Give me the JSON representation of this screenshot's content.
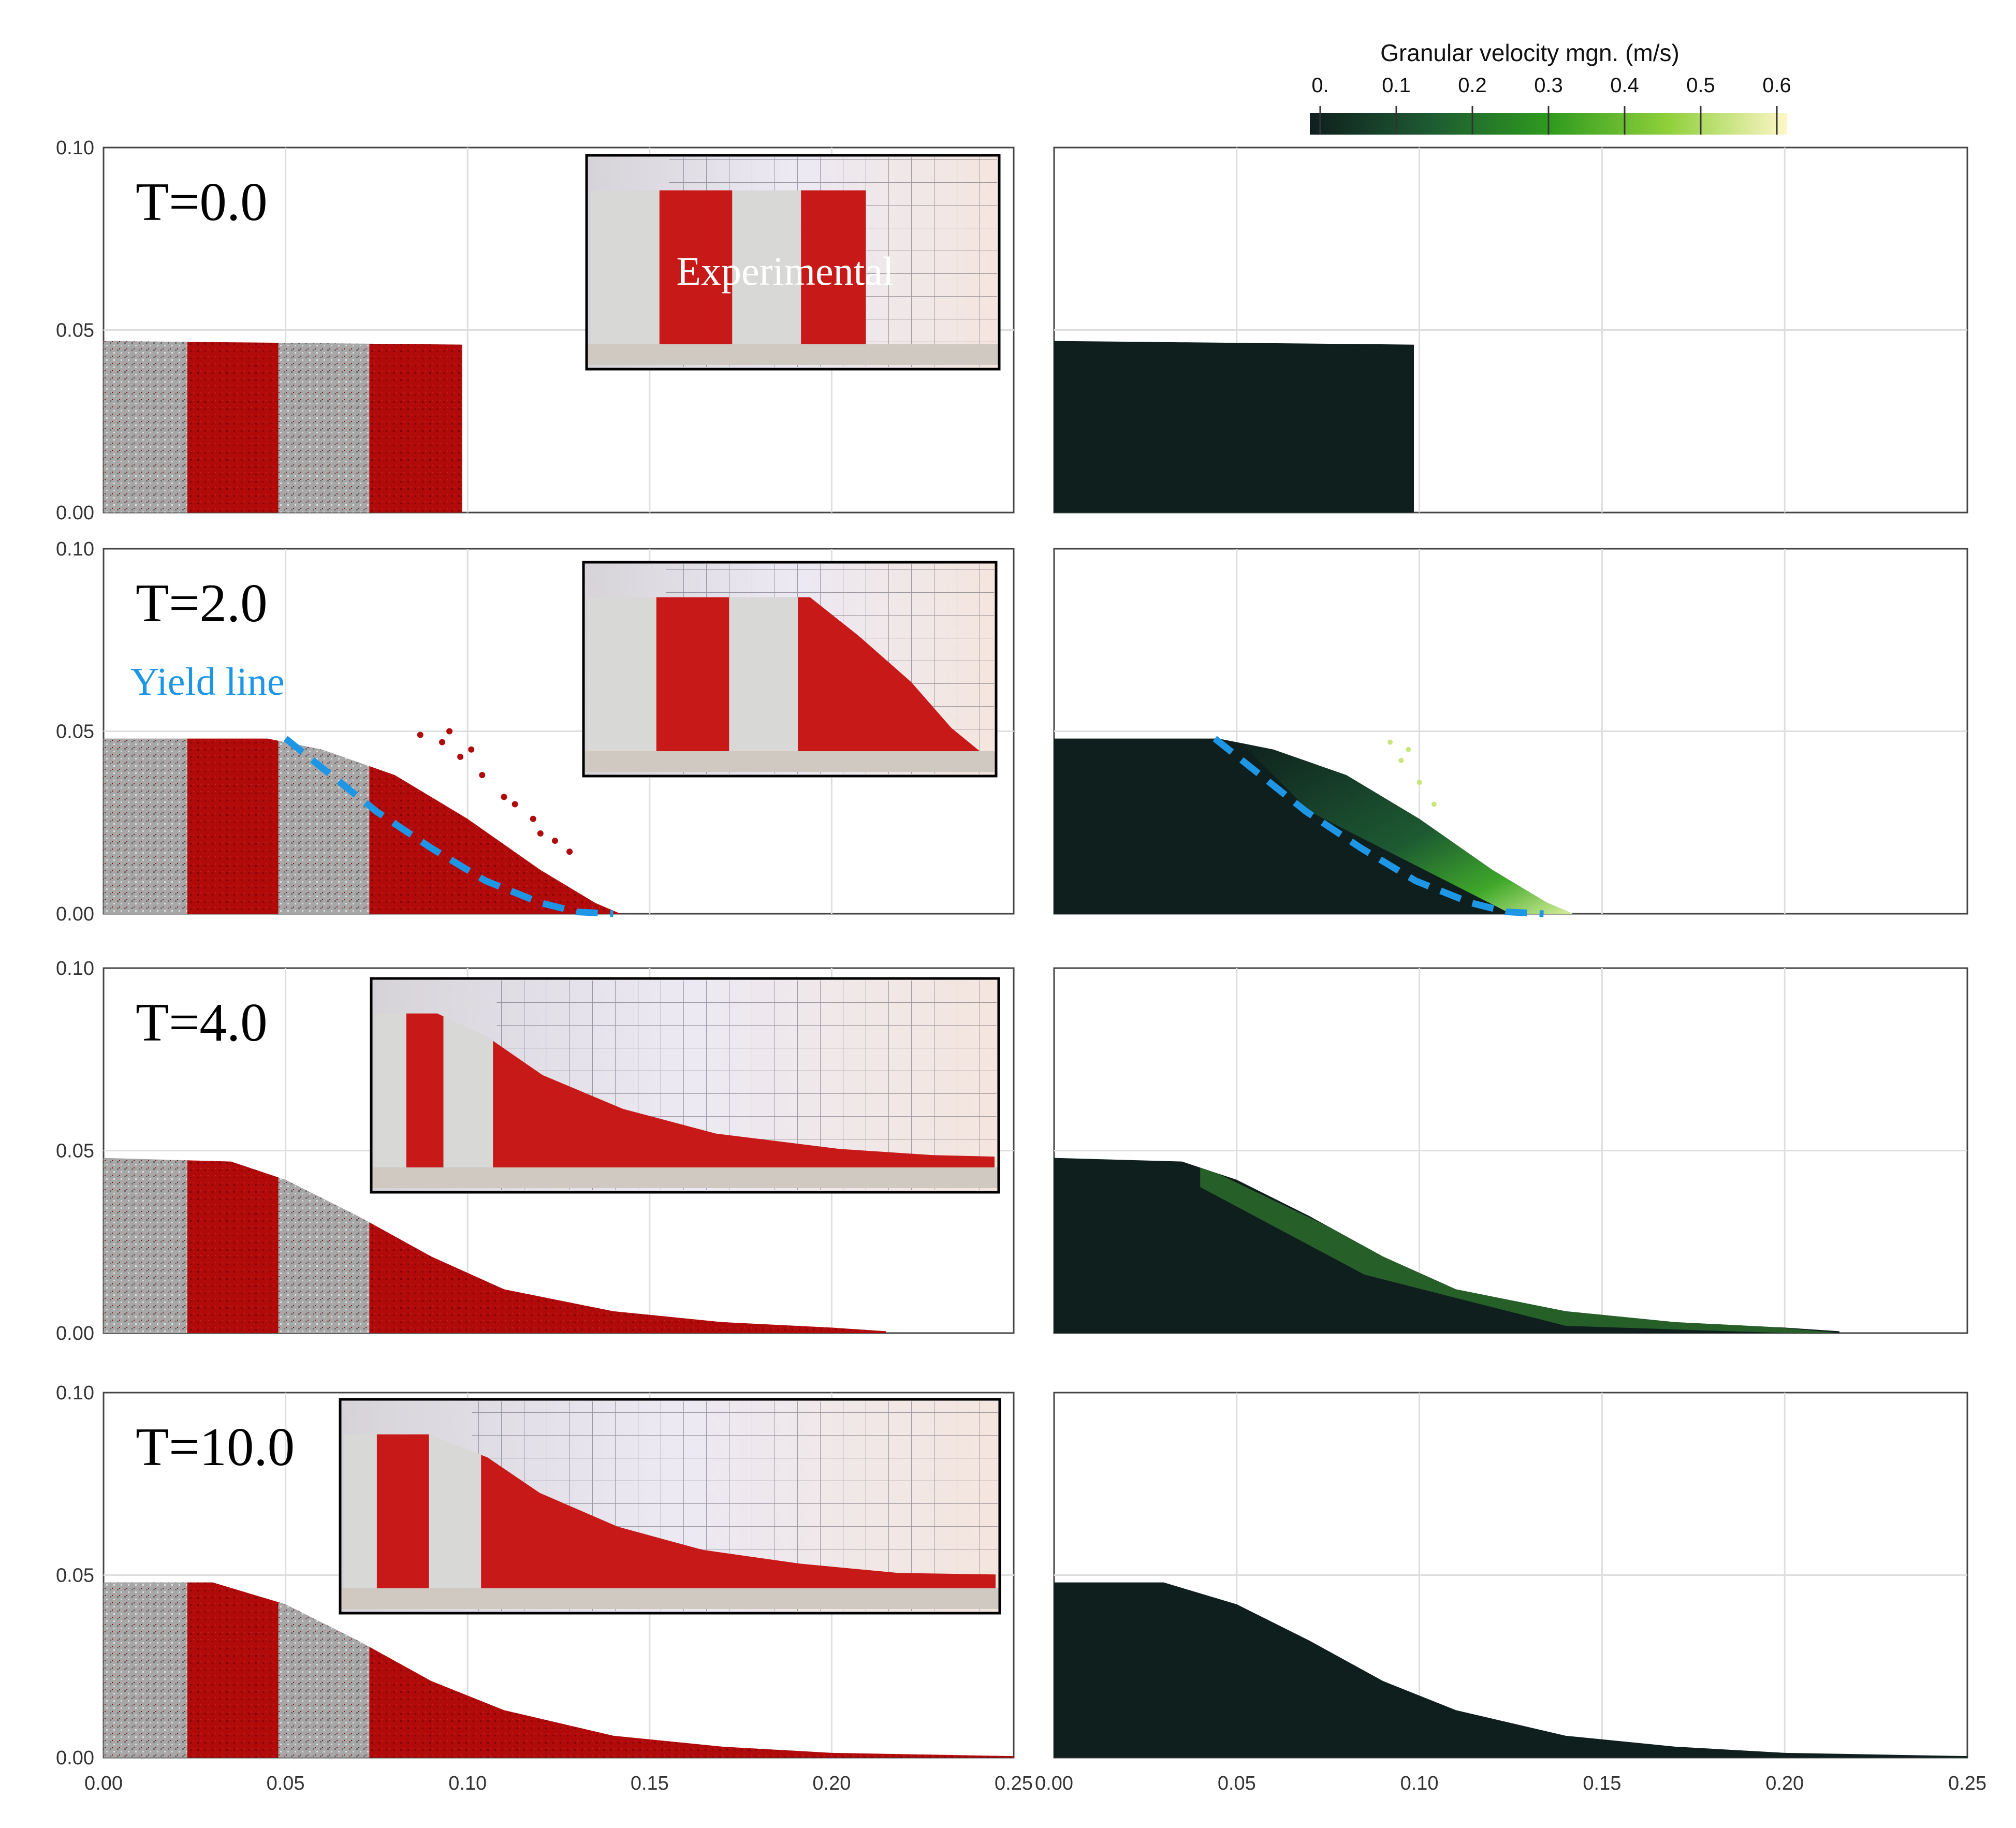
{
  "colorbar": {
    "title": "Granular velocity mgn. (m/s)",
    "ticks": [
      "0.",
      "0.1",
      "0.2",
      "0.3",
      "0.4",
      "0.5",
      "0.6"
    ],
    "min": 0,
    "max": 0.6,
    "colors": [
      "#0f1f1e",
      "#1d5a32",
      "#2e9a1f",
      "#8fd03a",
      "#fff6c8"
    ]
  },
  "axes": {
    "x_ticks": [
      "0.00",
      "0.05",
      "0.10",
      "0.15",
      "0.20",
      "0.25"
    ],
    "y_ticks": [
      "0.10",
      "0.05",
      "0.00"
    ],
    "xlim": [
      0,
      0.25
    ],
    "ylim": [
      0,
      0.1
    ]
  },
  "inset_label": "Experimental",
  "yield_label": "Yield line",
  "colors": {
    "red_particles": "#b00a0a",
    "grey_particles": "#a7a7a7",
    "velocity_low": "#0f1f1e",
    "yield_line": "#1e96e6"
  },
  "rows": [
    {
      "time_label": "T=0.0",
      "shows_yield_line": false
    },
    {
      "time_label": "T=2.0",
      "shows_yield_line": true
    },
    {
      "time_label": "T=4.0",
      "shows_yield_line": false
    },
    {
      "time_label": "T=10.0",
      "shows_yield_line": false
    }
  ]
}
